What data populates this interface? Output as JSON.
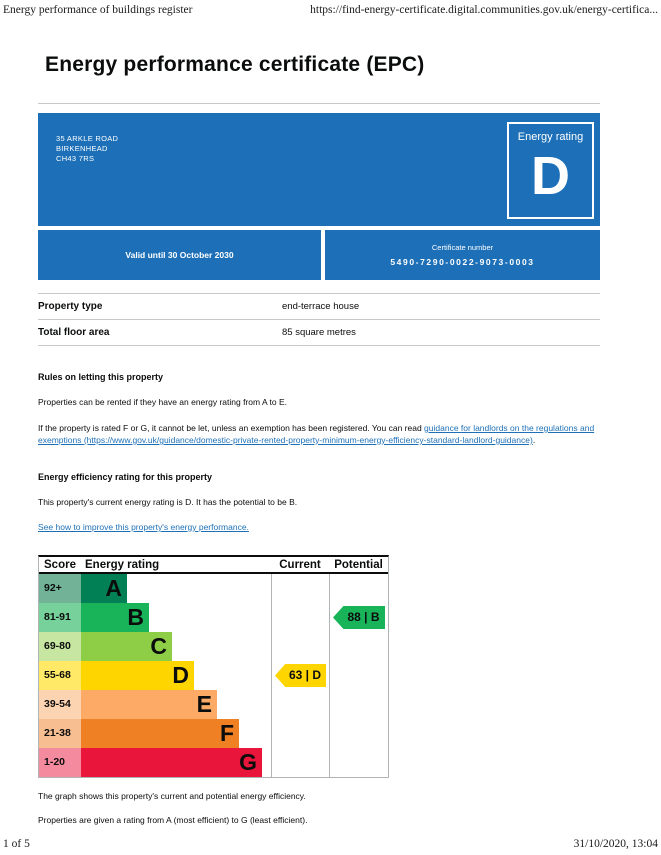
{
  "print_header": {
    "left": "Energy performance of buildings register",
    "right": "https://find-energy-certificate.digital.communities.gov.uk/energy-certifica..."
  },
  "page_title": "Energy performance certificate (EPC)",
  "hero": {
    "address_lines": [
      "35 ARKLE ROAD",
      "BIRKENHEAD",
      "CH43 7RS"
    ],
    "rating_label": "Energy rating",
    "rating_letter": "D",
    "valid_until": "Valid until 30 October 2030",
    "certificate_number_label": "Certificate number",
    "certificate_number": "5490-7290-0022-9073-0003",
    "brand_blue": "#1d70b8"
  },
  "summary": {
    "rows": [
      {
        "label": "Property type",
        "value": "end-terrace house"
      },
      {
        "label": "Total floor area",
        "value": "85 square metres"
      }
    ]
  },
  "rules_section": {
    "heading": "Rules on letting this property",
    "para1": "Properties can be rented if they have an energy rating from A to E.",
    "para2_prefix": "If the property is rated F or G, it cannot be let, unless an exemption has been registered. You can read ",
    "para2_link": "guidance for landlords on the regulations and exemptions (https://www.gov.uk/guidance/domestic-private-rented-property-minimum-energy-efficiency-standard-landlord-guidance)",
    "para2_suffix": "."
  },
  "rating_section": {
    "heading": "Energy efficiency rating for this property",
    "para1": "This property's current energy rating is D. It has the potential to be B.",
    "improve_link": "See how to improve this property's energy performance."
  },
  "chart_data": {
    "type": "epc-rating-bands",
    "headers": {
      "score": "Score",
      "rating": "Energy rating",
      "current": "Current",
      "potential": "Potential"
    },
    "bands": [
      {
        "letter": "A",
        "score": "92+",
        "color": "#008054",
        "tint": "#72b398"
      },
      {
        "letter": "B",
        "score": "81-91",
        "color": "#19b459",
        "tint": "#76d19b"
      },
      {
        "letter": "C",
        "score": "69-80",
        "color": "#8dce46",
        "tint": "#c6e6a2"
      },
      {
        "letter": "D",
        "score": "55-68",
        "color": "#ffd500",
        "tint": "#ffe966"
      },
      {
        "letter": "E",
        "score": "39-54",
        "color": "#fcaa65",
        "tint": "#fdd4b2"
      },
      {
        "letter": "F",
        "score": "21-38",
        "color": "#ef8023",
        "tint": "#f7bf91"
      },
      {
        "letter": "G",
        "score": "1-20",
        "color": "#e9153b",
        "tint": "#f48a9d"
      }
    ],
    "current": {
      "value": 63,
      "band": "D",
      "label": "63 | D"
    },
    "potential": {
      "value": 88,
      "band": "B",
      "label": "88 | B"
    }
  },
  "chart_captions": [
    "The graph shows this property's current and potential energy efficiency.",
    "Properties are given a rating from A (most efficient) to G (least efficient)."
  ],
  "print_footer": {
    "left": "1 of 5",
    "right": "31/10/2020, 13:04"
  }
}
